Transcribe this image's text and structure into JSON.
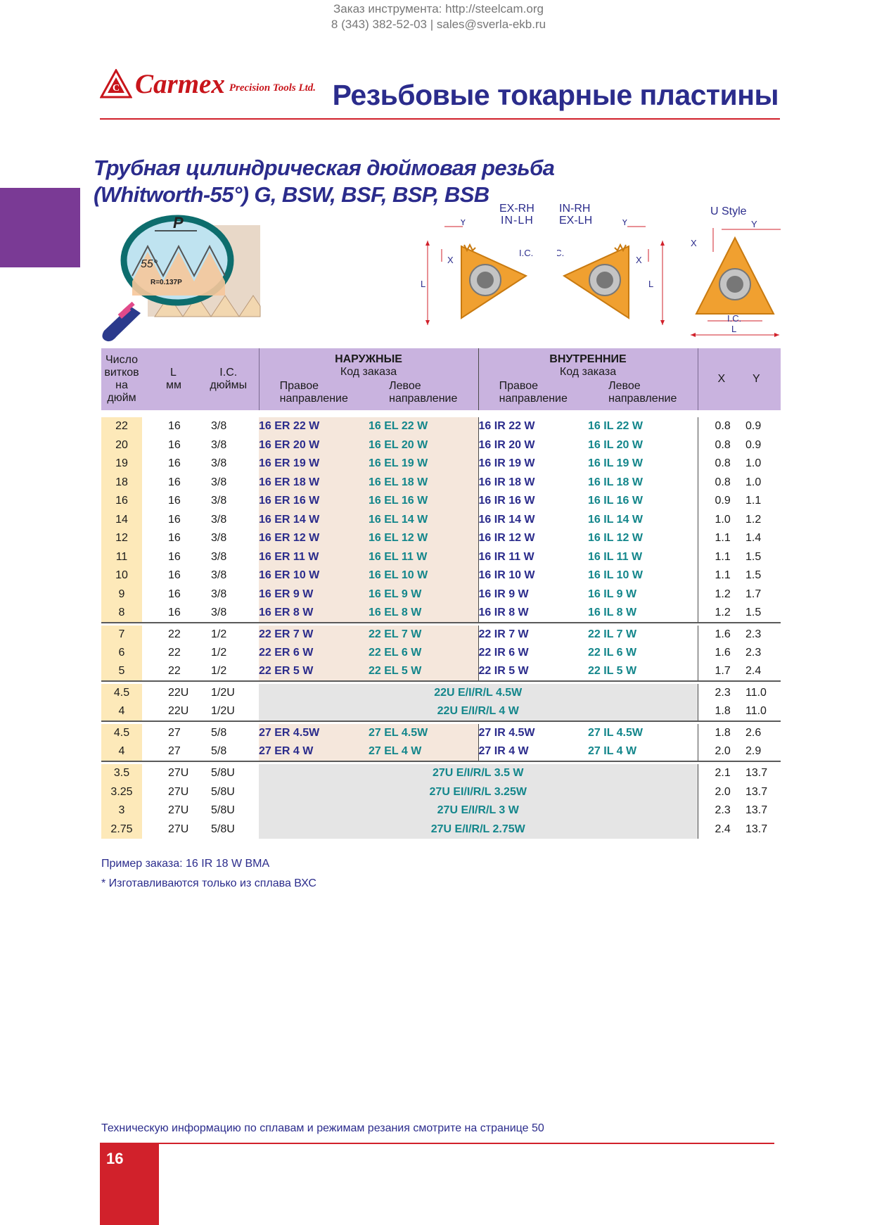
{
  "top_info": {
    "line1": "Заказ инструмента: http://steelcam.org",
    "line2": "8 (343) 382-52-03  |  sales@sverla-ekb.ru"
  },
  "brand": {
    "name": "Carmex",
    "subtitle": "Precision Tools Ltd.",
    "color": "#c8151b"
  },
  "page_title": "Резьбовые токарные пластины",
  "section": {
    "title_line1": "Трубная цилиндрическая дюймовая резьба",
    "title_line2": "(Whitworth-55°) G, BSW, BSF, BSP, BSB"
  },
  "illustration": {
    "pitch_label": "P",
    "angle_label": "55°",
    "radius_label": "R=0.137P"
  },
  "diagrams": {
    "left_top": "EX-RH",
    "left_bottom": "IN-LH",
    "right_top": "IN-RH",
    "right_bottom": "EX-LH",
    "u_style": "U  Style",
    "x": "X",
    "y": "Y",
    "l": "L",
    "ic": "I.C."
  },
  "table": {
    "headers": {
      "tpi": [
        "Число",
        "витков",
        "на дюйм"
      ],
      "l": [
        "L",
        "мм"
      ],
      "ic": [
        "I.C.",
        "дюймы"
      ],
      "ext_title": "НАРУЖНЫЕ",
      "ext_sub": "Код заказа",
      "int_title": "ВНУТРЕННИЕ",
      "int_sub": "Код заказа",
      "right_dir": [
        "Правое",
        "направление"
      ],
      "left_dir": [
        "Левое",
        "направление"
      ],
      "x": "X",
      "y": "Y"
    },
    "rows": [
      {
        "tpi": "22",
        "l": "16",
        "ic": "3/8",
        "er": "16 ER 22  W",
        "el": "16 EL 22   W",
        "ir": "16 IR 22   W",
        "il": "16 IL 22   W",
        "x": "0.8",
        "y": "0.9",
        "group_start": false
      },
      {
        "tpi": "20",
        "l": "16",
        "ic": "3/8",
        "er": "16 ER 20  W",
        "el": "16 EL 20   W",
        "ir": "16 IR 20   W",
        "il": "16 IL 20   W",
        "x": "0.8",
        "y": "0.9",
        "group_start": false
      },
      {
        "tpi": "19",
        "l": "16",
        "ic": "3/8",
        "er": "16 ER 19  W",
        "el": "16 EL 19   W",
        "ir": "16 IR 19   W",
        "il": "16 IL 19   W",
        "x": "0.8",
        "y": "1.0",
        "group_start": false
      },
      {
        "tpi": "18",
        "l": "16",
        "ic": "3/8",
        "er": "16 ER 18  W",
        "el": "16 EL 18   W",
        "ir": "16 IR 18   W",
        "il": "16 IL 18   W",
        "x": "0.8",
        "y": "1.0",
        "group_start": false
      },
      {
        "tpi": "16",
        "l": "16",
        "ic": "3/8",
        "er": "16 ER 16  W",
        "el": "16 EL 16   W",
        "ir": "16 IR 16   W",
        "il": "16 IL 16   W",
        "x": "0.9",
        "y": "1.1",
        "group_start": false
      },
      {
        "tpi": "14",
        "l": "16",
        "ic": "3/8",
        "er": "16 ER 14  W",
        "el": "16 EL 14   W",
        "ir": "16 IR 14   W",
        "il": "16 IL 14   W",
        "x": "1.0",
        "y": "1.2",
        "group_start": false
      },
      {
        "tpi": "12",
        "l": "16",
        "ic": "3/8",
        "er": "16 ER 12  W",
        "el": "16 EL 12   W",
        "ir": "16 IR 12   W",
        "il": "16 IL 12   W",
        "x": "1.1",
        "y": "1.4",
        "group_start": false
      },
      {
        "tpi": "11",
        "l": "16",
        "ic": "3/8",
        "er": "16 ER 11  W",
        "el": "16 EL 11   W",
        "ir": "16 IR 11   W",
        "il": "16 IL 11   W",
        "x": "1.1",
        "y": "1.5",
        "group_start": false
      },
      {
        "tpi": "10",
        "l": "16",
        "ic": "3/8",
        "er": "16 ER 10  W",
        "el": "16 EL 10   W",
        "ir": "16 IR 10   W",
        "il": "16 IL 10   W",
        "x": "1.1",
        "y": "1.5",
        "group_start": false
      },
      {
        "tpi": "9",
        "l": "16",
        "ic": "3/8",
        "er": "16 ER   9  W",
        "el": "16 EL   9   W",
        "ir": "16 IR   9   W",
        "il": "16 IL   9   W",
        "x": "1.2",
        "y": "1.7",
        "group_start": false
      },
      {
        "tpi": "8",
        "l": "16",
        "ic": "3/8",
        "er": "16 ER   8  W",
        "el": "16 EL   8   W",
        "ir": "16 IR   8   W",
        "il": "16 IL   8   W",
        "x": "1.2",
        "y": "1.5",
        "group_start": false
      },
      {
        "tpi": "7",
        "l": "22",
        "ic": "1/2",
        "er": "22 ER   7  W",
        "el": "22 EL   7   W",
        "ir": "22 IR   7   W",
        "il": "22 IL   7   W",
        "x": "1.6",
        "y": "2.3",
        "group_start": true
      },
      {
        "tpi": "6",
        "l": "22",
        "ic": "1/2",
        "er": "22 ER   6  W",
        "el": "22 EL   6   W",
        "ir": "22 IR   6   W",
        "il": "22 IL   6   W",
        "x": "1.6",
        "y": "2.3",
        "group_start": false
      },
      {
        "tpi": "5",
        "l": "22",
        "ic": "1/2",
        "er": "22 ER   5  W",
        "el": "22 EL   5   W",
        "ir": "22 IR   5   W",
        "il": "22 IL   5   W",
        "x": "1.7",
        "y": "2.4",
        "group_start": false
      },
      {
        "tpi": "4.5",
        "l": "22U",
        "ic": "1/2U",
        "merged": "22U E/I/R/L  4.5W",
        "x": "2.3",
        "y": "11.0",
        "group_start": true
      },
      {
        "tpi": "4",
        "l": "22U",
        "ic": "1/2U",
        "merged": "22U E/I/R/L  4   W",
        "x": "1.8",
        "y": "11.0",
        "group_start": false
      },
      {
        "tpi": "4.5",
        "l": "27",
        "ic": "5/8",
        "er": "27 ER   4.5W",
        "el": "27 EL   4.5W",
        "ir": "27 IR   4.5W",
        "il": "27 IL   4.5W",
        "x": "1.8",
        "y": "2.6",
        "group_start": true
      },
      {
        "tpi": "4",
        "l": "27",
        "ic": "5/8",
        "er": "27 ER   4   W",
        "el": "27 EL   4   W",
        "ir": "27 IR   4   W",
        "il": "27 IL   4   W",
        "x": "2.0",
        "y": "2.9",
        "group_start": false
      },
      {
        "tpi": "3.5",
        "l": "27U",
        "ic": "5/8U",
        "merged": "27U E/I/R/L 3.5  W",
        "x": "2.1",
        "y": "13.7",
        "group_start": true
      },
      {
        "tpi": "3.25",
        "l": "27U",
        "ic": "5/8U",
        "merged": "27U EI/I/R/L  3.25W",
        "x": "2.0",
        "y": "13.7",
        "group_start": false
      },
      {
        "tpi": "3",
        "l": "27U",
        "ic": "5/8U",
        "merged": "27U E/I/R/L 3     W",
        "x": "2.3",
        "y": "13.7",
        "group_start": false
      },
      {
        "tpi": "2.75",
        "l": "27U",
        "ic": "5/8U",
        "merged": "27U E/I/R/L 2.75W",
        "x": "2.4",
        "y": "13.7",
        "group_start": false
      }
    ]
  },
  "notes": {
    "example": "Пример заказа: 16 IR 18 W BMA",
    "alloy": "* Изготавливаются только из сплава ВХС"
  },
  "footer": {
    "text": "Техническую информацию по сплавам и режимам резания смотрите на странице 50",
    "page_number": "16"
  },
  "colors": {
    "accent_red": "#d1212b",
    "navy": "#2b2c8c",
    "teal": "#13868b",
    "header_purple": "#c9b3df",
    "tpi_yellow": "#fde9b9",
    "ext_pink": "#f5e7dc",
    "tab_purple": "#7a3a95",
    "insert_orange": "#f0a030"
  }
}
